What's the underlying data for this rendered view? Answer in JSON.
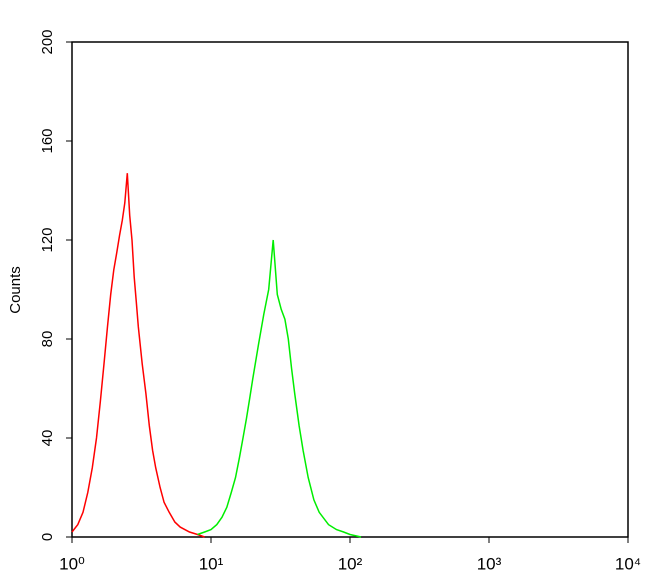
{
  "chart_data": {
    "type": "line",
    "y_label": "Counts",
    "x_log": true,
    "xlim": [
      1,
      10000
    ],
    "xticks": [
      {
        "value": 1,
        "label": "10⁰"
      },
      {
        "value": 10,
        "label": "10¹"
      },
      {
        "value": 100,
        "label": "10²"
      },
      {
        "value": 1000,
        "label": "10³"
      },
      {
        "value": 10000,
        "label": "10⁴"
      }
    ],
    "ylim": [
      0,
      200
    ],
    "yticks": [
      0,
      40,
      80,
      120,
      160,
      200
    ],
    "series": [
      {
        "color": "#ff0000",
        "x": [
          1.0,
          1.1,
          1.2,
          1.3,
          1.4,
          1.5,
          1.6,
          1.7,
          1.8,
          1.9,
          2.0,
          2.1,
          2.2,
          2.3,
          2.4,
          2.5,
          2.6,
          2.7,
          2.8,
          2.9,
          3.0,
          3.2,
          3.4,
          3.6,
          3.8,
          4.0,
          4.3,
          4.6,
          5.0,
          5.5,
          6,
          7,
          8,
          9
        ],
        "values": [
          2,
          5,
          10,
          18,
          28,
          40,
          55,
          70,
          85,
          98,
          108,
          115,
          122,
          128,
          135,
          147,
          130,
          120,
          105,
          95,
          85,
          70,
          58,
          45,
          35,
          28,
          20,
          14,
          10,
          6,
          4,
          2,
          1,
          0
        ]
      },
      {
        "color": "#00ee00",
        "x": [
          8,
          9,
          10,
          11,
          12,
          13,
          14,
          15,
          16,
          17,
          18,
          19,
          20,
          22,
          24,
          26,
          28,
          30,
          32,
          34,
          36,
          38,
          40,
          43,
          46,
          50,
          55,
          60,
          70,
          80,
          90,
          100,
          120
        ],
        "values": [
          1,
          2,
          3,
          5,
          8,
          12,
          18,
          24,
          32,
          40,
          48,
          56,
          64,
          78,
          90,
          100,
          120,
          98,
          92,
          88,
          80,
          68,
          58,
          45,
          35,
          24,
          15,
          10,
          5,
          3,
          2,
          1,
          0
        ]
      }
    ]
  }
}
